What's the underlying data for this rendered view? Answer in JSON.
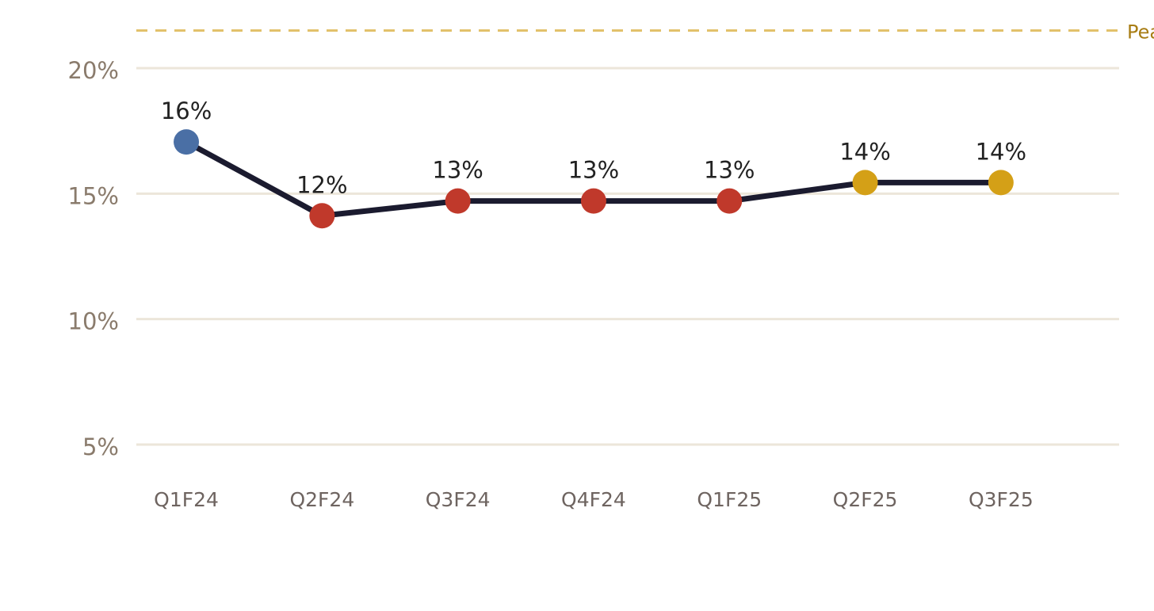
{
  "chart_data": {
    "type": "line",
    "categories": [
      "Q1F24",
      "Q2F24",
      "Q3F24",
      "Q4F24",
      "Q1F25",
      "Q2F25",
      "Q3F25"
    ],
    "series": [
      {
        "values": [
          16,
          12,
          12.8,
          12.8,
          12.8,
          13.8,
          13.8
        ],
        "value_labels": [
          "16%",
          "12%",
          "13%",
          "13%",
          "13%",
          "14%",
          "14%"
        ],
        "color": "#1b1b2f",
        "point_colors": [
          "#4a6fa5",
          "#c0392b",
          "#c0392b",
          "#c0392b",
          "#c0392b",
          "#d4a017",
          "#d4a017"
        ],
        "axis": "y2"
      }
    ],
    "ylim": [
      5,
      20
    ],
    "yticks": [
      {
        "value": 5,
        "label": "5%"
      },
      {
        "value": 10,
        "label": "10%"
      },
      {
        "value": 15,
        "label": "15%"
      },
      {
        "value": 20,
        "label": "20%"
      }
    ],
    "y2lim": [
      -0.4,
      20
    ],
    "grid": true,
    "reference_line": {
      "value": 21.5,
      "label": "Peak",
      "color": "#e2c16b"
    }
  }
}
